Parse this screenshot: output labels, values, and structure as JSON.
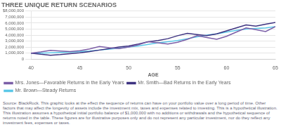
{
  "chart_data": {
    "type": "line",
    "title": "THREE UNIQUE RETURN SCENARIOS",
    "x_label": "AGE",
    "x": [
      40,
      41,
      42,
      43,
      44,
      45,
      46,
      47,
      48,
      49,
      50,
      51,
      52,
      53,
      54,
      55,
      56,
      57,
      58,
      59,
      60,
      61,
      62,
      63,
      64,
      65
    ],
    "series": [
      {
        "name": "Mrs. Jones—Favorable Returns in the Early Years",
        "color": "#7b5ea7",
        "values": [
          1000000,
          1200000,
          1450000,
          1350000,
          1250000,
          1400000,
          1700000,
          2100000,
          1900000,
          1750000,
          2000000,
          2400000,
          2900000,
          2700000,
          2500000,
          2800000,
          3300000,
          3900000,
          3600000,
          3300000,
          3800000,
          4500000,
          5200000,
          4900000,
          4600000,
          5400000
        ]
      },
      {
        "name": "Mr. Smith—Bad Returns in the Early Years",
        "color": "#3d3380",
        "values": [
          1000000,
          800000,
          650000,
          750000,
          900000,
          1050000,
          1250000,
          1500000,
          1750000,
          2000000,
          2200000,
          2500000,
          2900000,
          3100000,
          3400000,
          3900000,
          4300000,
          4100000,
          3900000,
          4200000,
          4700000,
          5200000,
          5700000,
          5500000,
          5800000,
          6100000
        ]
      },
      {
        "name": "Mr. Brown—Steady Returns",
        "color": "#5bc8e8",
        "values": [
          1000000,
          1000000,
          1050000,
          1100000,
          1150000,
          1250000,
          1350000,
          1500000,
          1650000,
          1800000,
          2000000,
          2200000,
          2450000,
          2700000,
          2900000,
          3100000,
          3400000,
          3700000,
          4000000,
          4200000,
          4500000,
          4800000,
          5000000,
          5100000,
          5200000,
          5400000
        ]
      }
    ],
    "xlim": [
      40,
      65
    ],
    "xticks": [
      40,
      45,
      50,
      55,
      60,
      65
    ],
    "ylim": [
      0,
      8000000
    ],
    "yticks": [
      0,
      {
        "value": 1000000,
        "label": "1,000,000"
      },
      {
        "value": 2000000,
        "label": "2,000,000"
      },
      {
        "value": 3000000,
        "label": "3,000,000"
      },
      {
        "value": 4000000,
        "label": "4,000,000"
      },
      {
        "value": 5000000,
        "label": "5,000,000"
      },
      {
        "value": 6000000,
        "label": "6,000,000"
      },
      {
        "value": 7000000,
        "label": "7,000,000"
      },
      {
        "value": 8000000,
        "label": "$8,000,000"
      }
    ],
    "grid": "y",
    "legend": "bottom",
    "annotations": [
      "Source: BlackRock. This graphic looks at the effect the sequence of returns can have on your portfolio value over a long period of time. Other factors that may affect the longevity of assets include the investment mix, taxes and expenses related to investing. This is a hypothetical illustration. This illustration assumes a hypothetical initial portfolio balance of $1,000,000 with no additions or withdrawals and the hypothetical sequence of returns noted in the table. These figures are for illustrative purposes only and do not represent any particular investment, nor do they reflect any investment fees, expenses or taxes."
    ]
  }
}
